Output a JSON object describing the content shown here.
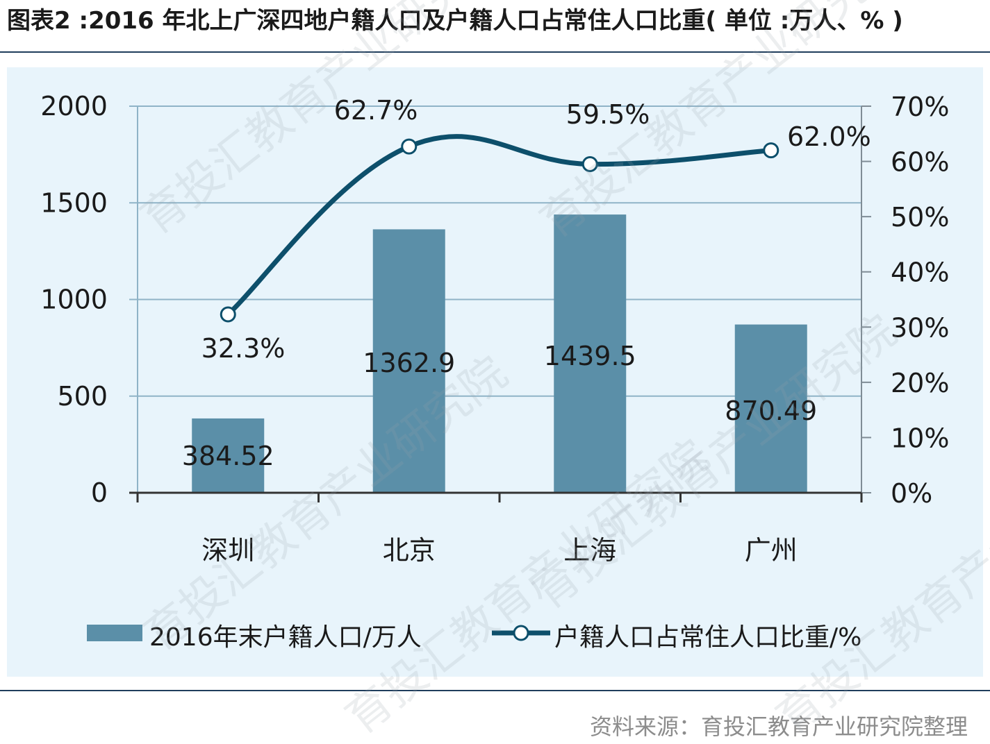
{
  "title": "图表2 :2016 年北上广深四地户籍人口及户籍人口占常住人口比重( 单位 :万人、% )",
  "source": "资料来源：育投汇教育产业研究院整理",
  "watermark": "育投汇教育产业研究院",
  "colors": {
    "bar": "#5b8fa8",
    "line": "#0d4f6b",
    "grid": "#8fb3c7",
    "panel": "#e8f4fb"
  },
  "chart_data": {
    "type": "bar",
    "categories": [
      "深圳",
      "北京",
      "上海",
      "广州"
    ],
    "series": [
      {
        "name": "2016年末户籍人口/万人",
        "type": "bar",
        "axis": "left",
        "values": [
          384.52,
          1362.9,
          1439.5,
          870.49
        ],
        "labels": [
          "384.52",
          "1362.9",
          "1439.5",
          "870.49"
        ]
      },
      {
        "name": "户籍人口占常住人口比重/%",
        "type": "line",
        "axis": "right",
        "values": [
          32.3,
          62.7,
          59.5,
          62.0
        ],
        "labels": [
          "32.3%",
          "62.7%",
          "59.5%",
          "62.0%"
        ]
      }
    ],
    "y_left": {
      "range": [
        0,
        2000
      ],
      "ticks": [
        "0",
        "500",
        "1000",
        "1500",
        "2000"
      ]
    },
    "y_right": {
      "range": [
        0,
        70
      ],
      "ticks": [
        "0%",
        "10%",
        "20%",
        "30%",
        "40%",
        "50%",
        "60%",
        "70%"
      ]
    },
    "grid": true,
    "legend": "bottom"
  }
}
